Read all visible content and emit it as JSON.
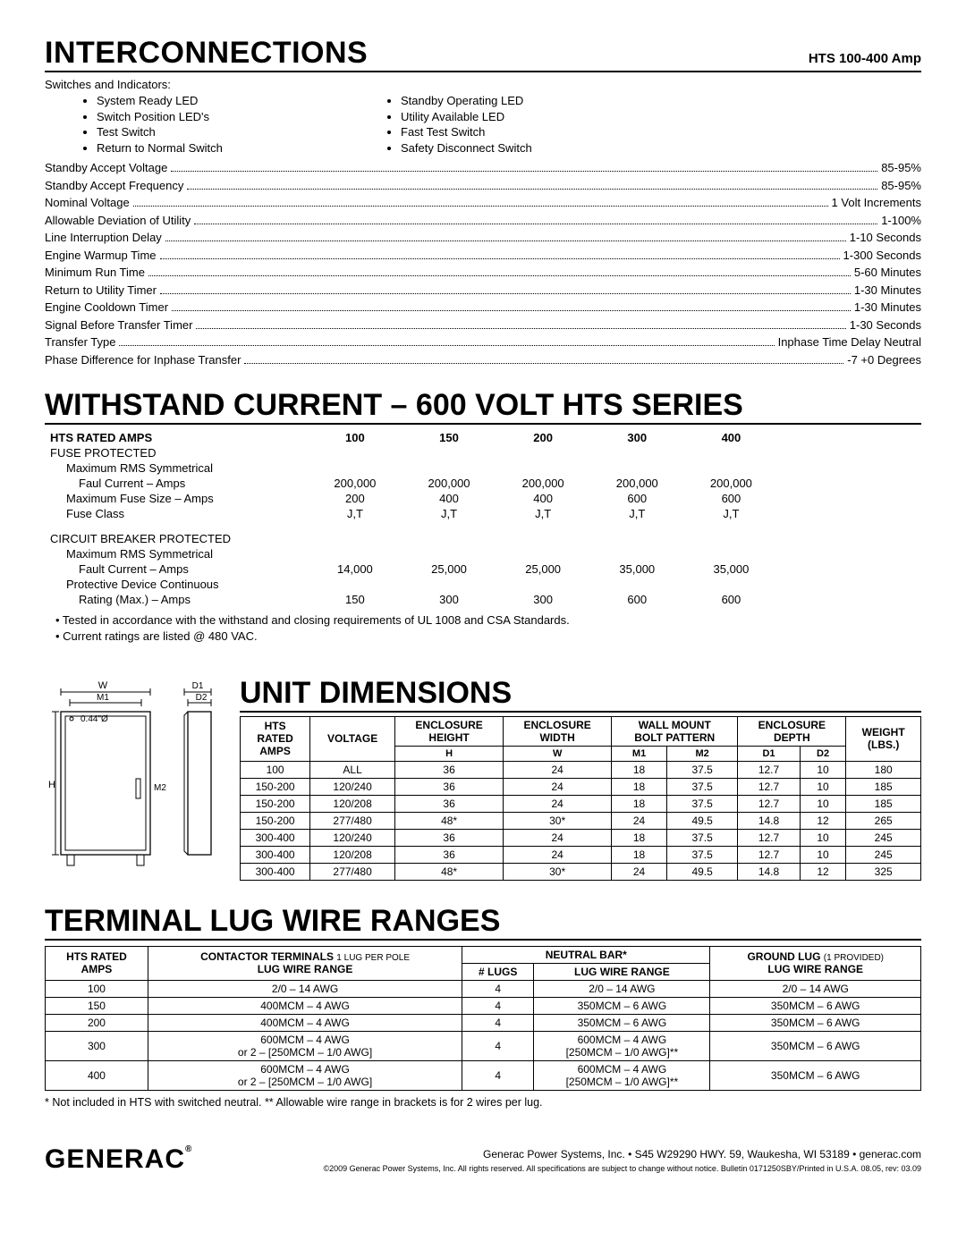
{
  "model": "HTS 100-400 Amp",
  "sections": {
    "interconnections": "INTERCONNECTIONS",
    "withstand": "WITHSTAND CURRENT – 600 VOLT HTS SERIES",
    "dimensions": "UNIT DIMENSIONS",
    "lugs": "TERMINAL LUG WIRE RANGES"
  },
  "switches_label": "Switches and Indicators:",
  "indicators_left": [
    "System Ready LED",
    "Switch Position LED's",
    "Test Switch",
    "Return to Normal Switch"
  ],
  "indicators_right": [
    "Standby Operating LED",
    "Utility Available LED",
    "Fast Test Switch",
    "Safety Disconnect Switch"
  ],
  "spec_rows": [
    {
      "label": "Standby Accept Voltage",
      "value": "85-95%"
    },
    {
      "label": "Standby Accept Frequency",
      "value": "85-95%"
    },
    {
      "label": "Nominal Voltage",
      "value": "1 Volt Increments"
    },
    {
      "label": "Allowable Deviation of Utility",
      "value": "1-100%"
    },
    {
      "label": "Line Interruption Delay",
      "value": "1-10 Seconds"
    },
    {
      "label": "Engine Warmup Time",
      "value": "1-300 Seconds"
    },
    {
      "label": "Minimum Run Time",
      "value": "5-60 Minutes"
    },
    {
      "label": "Return to Utility Timer",
      "value": "1-30 Minutes"
    },
    {
      "label": "Engine Cooldown Timer",
      "value": "1-30 Minutes"
    },
    {
      "label": "Signal Before Transfer Timer",
      "value": "1-30 Seconds"
    },
    {
      "label": "Transfer Type",
      "value": "Inphase Time Delay Neutral"
    },
    {
      "label": "Phase Difference for Inphase Transfer",
      "value": "-7 +0 Degrees"
    }
  ],
  "withstand": {
    "header": [
      "HTS RATED AMPS",
      "100",
      "150",
      "200",
      "300",
      "400"
    ],
    "groups": [
      {
        "title": "FUSE PROTECTED",
        "rows": [
          {
            "label": "Maximum RMS Symmetrical",
            "values": [
              "",
              "",
              "",
              "",
              ""
            ]
          },
          {
            "label2": "Faul Current – Amps",
            "values": [
              "200,000",
              "200,000",
              "200,000",
              "200,000",
              "200,000"
            ]
          },
          {
            "label": "Maximum Fuse Size – Amps",
            "values": [
              "200",
              "400",
              "400",
              "600",
              "600"
            ]
          },
          {
            "label": "Fuse Class",
            "values": [
              "J,T",
              "J,T",
              "J,T",
              "J,T",
              "J,T"
            ]
          }
        ]
      },
      {
        "title": "CIRCUIT BREAKER PROTECTED",
        "rows": [
          {
            "label": "Maximum RMS Symmetrical",
            "values": [
              "",
              "",
              "",
              "",
              ""
            ]
          },
          {
            "label2": "Fault Current – Amps",
            "values": [
              "14,000",
              "25,000",
              "25,000",
              "35,000",
              "35,000"
            ]
          },
          {
            "label": "Protective Device Continuous",
            "values": [
              "",
              "",
              "",
              "",
              ""
            ]
          },
          {
            "label2": "Rating (Max.) – Amps",
            "values": [
              "150",
              "300",
              "300",
              "600",
              "600"
            ]
          }
        ]
      }
    ],
    "notes": [
      "• Tested in accordance with the withstand and closing requirements of UL 1008 and CSA Standards.",
      "• Current ratings are listed @ 480 VAC."
    ]
  },
  "dimensions": {
    "headers_top": [
      "HTS RATED AMPS",
      "VOLTAGE",
      "ENCLOSURE HEIGHT",
      "ENCLOSURE WIDTH",
      "WALL MOUNT BOLT PATTERN",
      "ENCLOSURE DEPTH",
      "WEIGHT (lbs.)"
    ],
    "subheaders": [
      "",
      "",
      "H",
      "W",
      "M1",
      "M2",
      "D1",
      "D2",
      ""
    ],
    "rows": [
      [
        "100",
        "ALL",
        "36",
        "24",
        "18",
        "37.5",
        "12.7",
        "10",
        "180"
      ],
      [
        "150-200",
        "120/240",
        "36",
        "24",
        "18",
        "37.5",
        "12.7",
        "10",
        "185"
      ],
      [
        "150-200",
        "120/208",
        "36",
        "24",
        "18",
        "37.5",
        "12.7",
        "10",
        "185"
      ],
      [
        "150-200",
        "277/480",
        "48*",
        "30*",
        "24",
        "49.5",
        "14.8",
        "12",
        "265"
      ],
      [
        "300-400",
        "120/240",
        "36",
        "24",
        "18",
        "37.5",
        "12.7",
        "10",
        "245"
      ],
      [
        "300-400",
        "120/208",
        "36",
        "24",
        "18",
        "37.5",
        "12.7",
        "10",
        "245"
      ],
      [
        "300-400",
        "277/480",
        "48*",
        "30*",
        "24",
        "49.5",
        "14.8",
        "12",
        "325"
      ]
    ]
  },
  "lugs": {
    "header1": [
      "HTS RATED AMPS",
      "CONTACTOR TERMINALS 1 LUG PER POLE  LUG WIRE RANGE",
      "NEUTRAL BAR*",
      "GROUND LUG  (1 PROVIDED)  LUG WIRE RANGE"
    ],
    "rows": [
      [
        "100",
        "2/0 – 14 AWG",
        "4",
        "2/0 – 14 AWG",
        "2/0 – 14 AWG"
      ],
      [
        "150",
        "400MCM – 4 AWG",
        "4",
        "350MCM – 6 AWG",
        "350MCM – 6 AWG"
      ],
      [
        "200",
        "400MCM – 4 AWG",
        "4",
        "350MCM – 6 AWG",
        "350MCM – 6 AWG"
      ],
      [
        "300",
        "600MCM – 4 AWG\nor 2 – [250MCM – 1/0 AWG]",
        "4",
        "600MCM – 4 AWG\n[250MCM – 1/0 AWG]**",
        "350MCM – 6 AWG"
      ],
      [
        "400",
        "600MCM – 4 AWG\nor 2 – [250MCM – 1/0 AWG]",
        "4",
        "600MCM – 4 AWG\n[250MCM – 1/0 AWG]**",
        "350MCM – 6 AWG"
      ]
    ],
    "footnote": "* Not included in HTS with switched neutral.   ** Allowable wire range in brackets is for 2 wires per lug."
  },
  "footer": {
    "brand": "GENERAC",
    "addr": "Generac Power Systems, Inc. • S45 W29290 HWY. 59,  Waukesha, WI 53189 • generac.com",
    "legal": "©2009 Generac Power Systems, Inc. All rights reserved. All specifications are subject to change without notice. Bulletin 0171250SBY/Printed in U.S.A. 08.05, rev: 03.09"
  }
}
